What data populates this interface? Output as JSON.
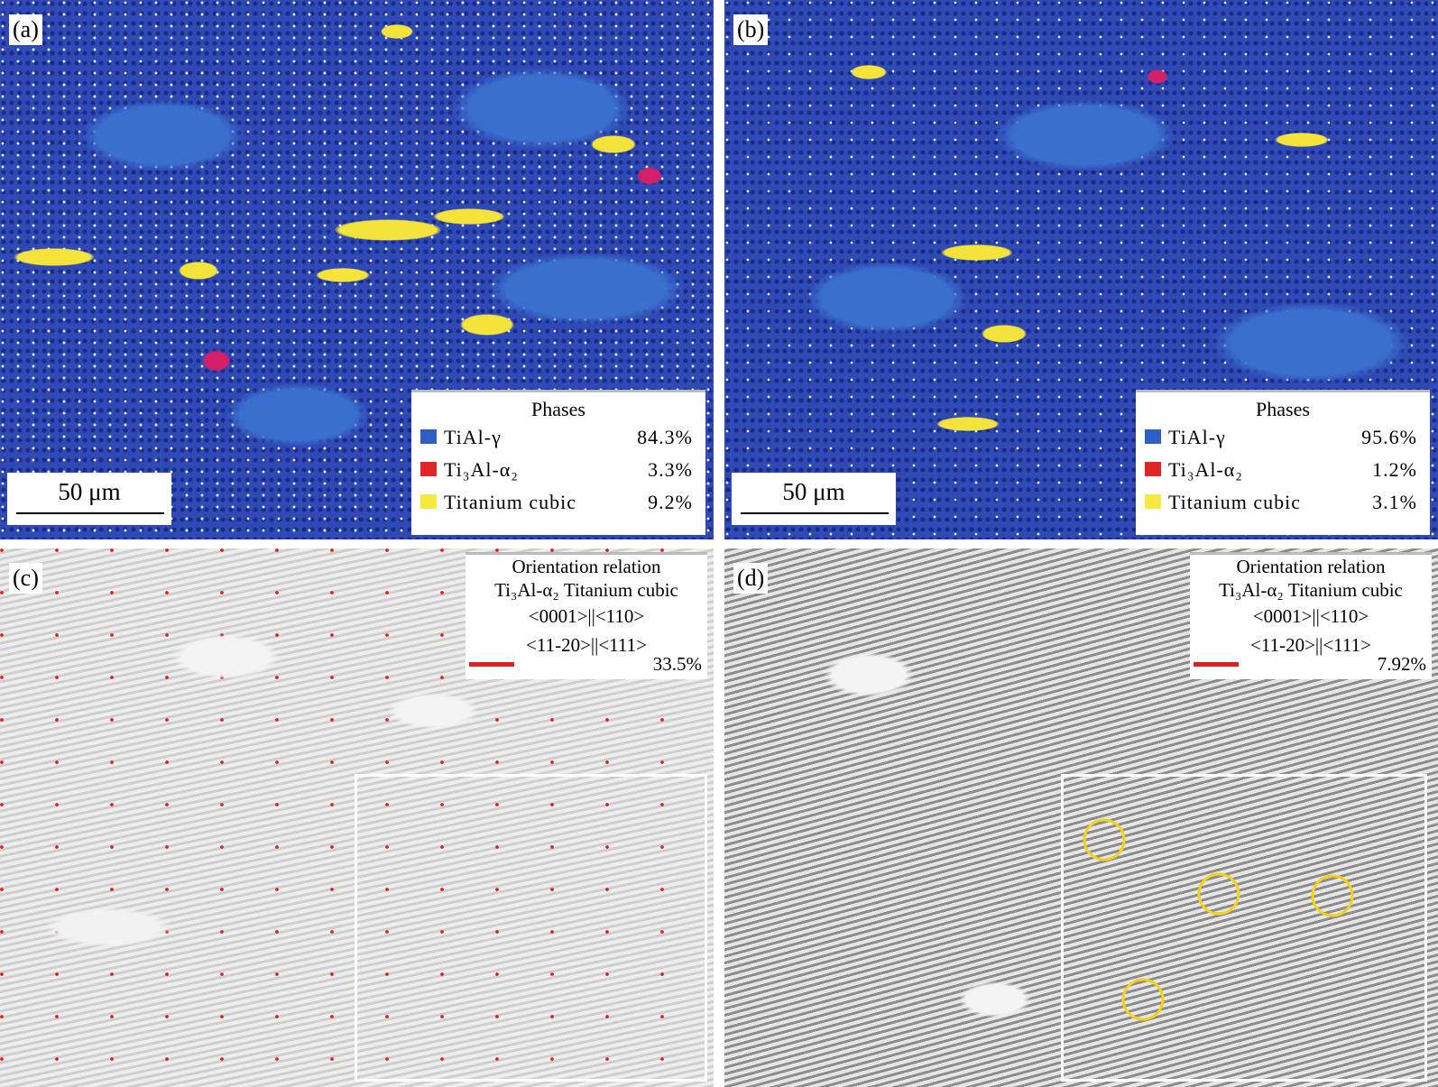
{
  "panels": [
    {
      "label": "(a)",
      "scale_bar": "50 μm",
      "legend": {
        "title": "Phases",
        "rows": [
          [
            "TiAl-γ",
            "84.3%"
          ],
          [
            "Ti₃Al-α₂",
            "3.3%"
          ],
          [
            "Titanium cubic",
            "9.2%"
          ]
        ]
      }
    },
    {
      "label": "(b)",
      "scale_bar": "50 μm",
      "legend": {
        "title": "Phases",
        "rows": [
          [
            "TiAl-γ",
            "95.6%"
          ],
          [
            "Ti₃Al-α₂",
            "1.2%"
          ],
          [
            "Titanium cubic",
            "3.1%"
          ]
        ]
      }
    },
    {
      "label": "(c)",
      "legend": {
        "title": "Orientation relation",
        "subtitle": "Ti₃Al-α₂ Titanium cubic",
        "lines": [
          "<0001>||<110>",
          "<11-20>||<111>"
        ],
        "value": "33.5%"
      }
    },
    {
      "label": "(d)",
      "legend": {
        "title": "Orientation relation",
        "subtitle": "Ti₃Al-α₂ Titanium cubic",
        "lines": [
          "<0001>||<110>",
          "<11-20>||<111>"
        ],
        "value": "7.92%"
      }
    }
  ]
}
